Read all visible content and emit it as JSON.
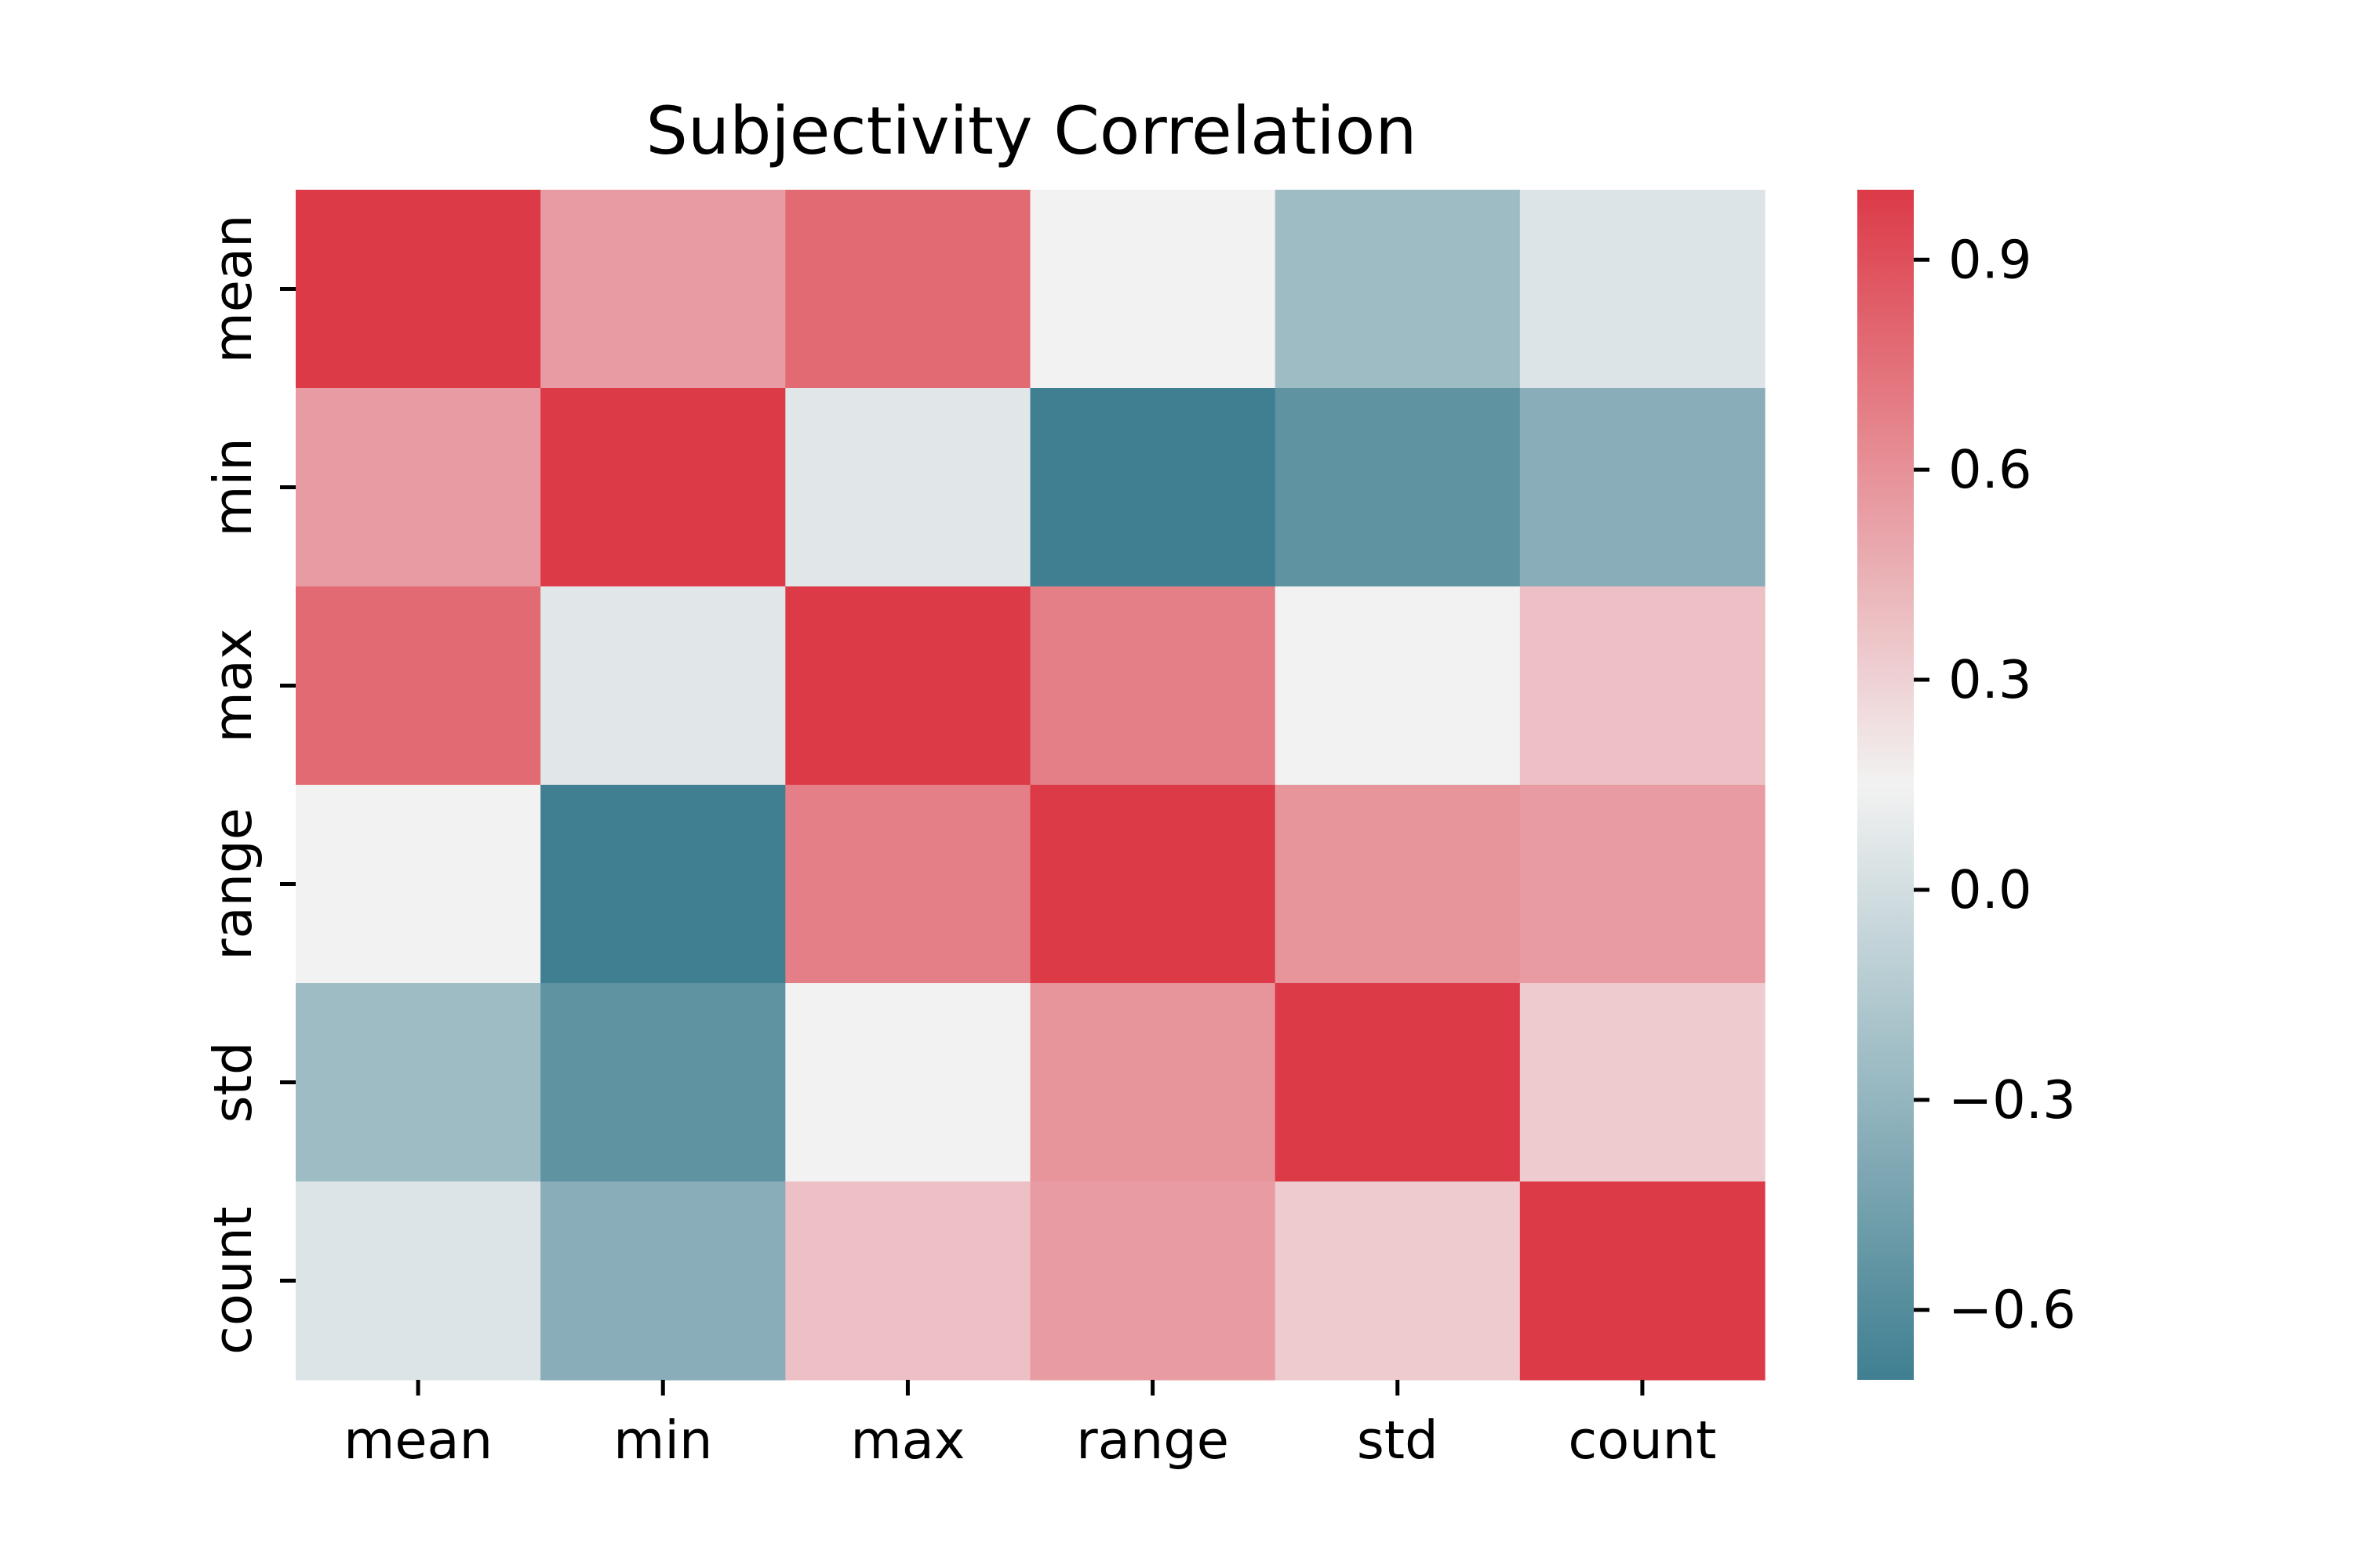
{
  "chart_data": {
    "type": "heatmap",
    "title": "Subjectivity Correlation",
    "x_categories": [
      "mean",
      "min",
      "max",
      "range",
      "std",
      "count"
    ],
    "y_categories": [
      "mean",
      "min",
      "max",
      "range",
      "std",
      "count"
    ],
    "values": [
      [
        1.0,
        0.55,
        0.78,
        0.15,
        -0.25,
        0.05
      ],
      [
        0.55,
        1.0,
        0.07,
        -0.7,
        -0.55,
        -0.35
      ],
      [
        0.78,
        0.07,
        1.0,
        0.68,
        0.15,
        0.38
      ],
      [
        0.15,
        -0.7,
        0.68,
        1.0,
        0.58,
        0.55
      ],
      [
        -0.25,
        -0.55,
        0.15,
        0.58,
        1.0,
        0.33
      ],
      [
        0.05,
        -0.35,
        0.38,
        0.55,
        0.33,
        1.0
      ]
    ],
    "colorbar": {
      "vmin": -0.7,
      "vmax": 1.0,
      "center": 0.15,
      "ticks": [
        -0.6,
        -0.3,
        0.0,
        0.3,
        0.6,
        0.9
      ],
      "tick_labels": [
        "−0.6",
        "−0.3",
        "0.0",
        "0.3",
        "0.6",
        "0.9"
      ]
    },
    "colors": {
      "low": "#3f7f91",
      "mid": "#f2f2f2",
      "high": "#dc3a47"
    },
    "grid": false
  }
}
